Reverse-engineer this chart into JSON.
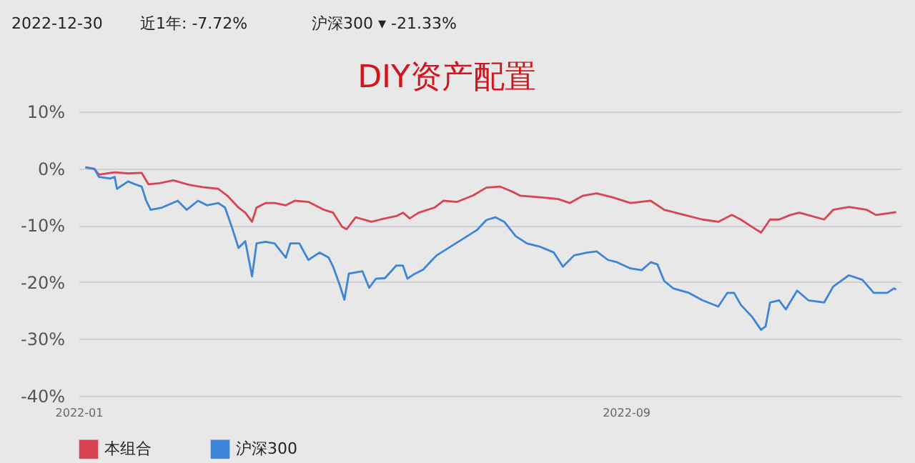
{
  "chart_data": {
    "type": "line",
    "title": "DIY资产配置",
    "annotations": [
      "2022-12-30",
      "近1年: -7.72%",
      "沪深300 ▾ -21.33%"
    ],
    "xlim": [
      "2022-01-01",
      "2023-01-01"
    ],
    "xticks": [
      {
        "value": "2022-01-01",
        "label": "2022-01"
      },
      {
        "value": "2022-09-01",
        "label": "2022-09"
      }
    ],
    "ylim": [
      -40,
      10
    ],
    "yticks": [
      {
        "value": -40,
        "label": "-40%"
      },
      {
        "value": -30,
        "label": "-30%"
      },
      {
        "value": -20,
        "label": "-20%"
      },
      {
        "value": -10,
        "label": "-10%"
      },
      {
        "value": 0,
        "label": "0%"
      },
      {
        "value": 10,
        "label": "10%"
      }
    ],
    "grid": "y",
    "legend": "bottom",
    "marker": "none",
    "line_style": "solid",
    "series": [
      {
        "name": "本组合",
        "color": "#d94452",
        "x": [
          "2022-01-04",
          "2022-01-08",
          "2022-01-10",
          "2022-01-17",
          "2022-01-23",
          "2022-01-29",
          "2022-02-01",
          "2022-02-06",
          "2022-02-12",
          "2022-02-19",
          "2022-02-25",
          "2022-03-04",
          "2022-03-08",
          "2022-03-13",
          "2022-03-16",
          "2022-03-19",
          "2022-03-21",
          "2022-03-25",
          "2022-03-29",
          "2022-04-03",
          "2022-04-07",
          "2022-04-13",
          "2022-04-20",
          "2022-04-24",
          "2022-04-28",
          "2022-04-30",
          "2022-05-04",
          "2022-05-11",
          "2022-05-15",
          "2022-05-22",
          "2022-05-25",
          "2022-05-28",
          "2022-06-01",
          "2022-06-08",
          "2022-06-12",
          "2022-06-18",
          "2022-06-25",
          "2022-07-01",
          "2022-07-07",
          "2022-07-12",
          "2022-07-16",
          "2022-07-25",
          "2022-08-02",
          "2022-08-07",
          "2022-08-13",
          "2022-08-19",
          "2022-08-26",
          "2022-09-03",
          "2022-09-12",
          "2022-09-18",
          "2022-09-27",
          "2022-10-05",
          "2022-10-12",
          "2022-10-18",
          "2022-10-22",
          "2022-10-27",
          "2022-10-31",
          "2022-11-04",
          "2022-11-08",
          "2022-11-13",
          "2022-11-17",
          "2022-11-28",
          "2022-12-02",
          "2022-12-09",
          "2022-12-17",
          "2022-12-21",
          "2022-12-30"
        ],
        "values": [
          0.2,
          -0.1,
          -1.1,
          -0.7,
          -0.9,
          -0.8,
          -2.8,
          -2.6,
          -2.1,
          -2.9,
          -3.3,
          -3.6,
          -4.8,
          -6.9,
          -7.8,
          -9.4,
          -6.9,
          -6.1,
          -6.1,
          -6.5,
          -5.7,
          -5.9,
          -7.3,
          -7.8,
          -10.3,
          -10.7,
          -8.6,
          -9.4,
          -9.0,
          -8.4,
          -7.8,
          -8.8,
          -7.8,
          -6.9,
          -5.7,
          -5.9,
          -4.8,
          -3.4,
          -3.2,
          -4.0,
          -4.8,
          -5.1,
          -5.4,
          -6.1,
          -4.8,
          -4.4,
          -5.1,
          -6.1,
          -5.7,
          -7.3,
          -8.2,
          -9.0,
          -9.4,
          -8.2,
          -9.0,
          -10.3,
          -11.3,
          -9.0,
          -9.0,
          -8.2,
          -7.8,
          -9.0,
          -7.3,
          -6.8,
          -7.3,
          -8.2,
          -7.7
        ]
      },
      {
        "name": "沪深300",
        "color": "#3d85d8",
        "x": [
          "2022-01-04",
          "2022-01-08",
          "2022-01-10",
          "2022-01-15",
          "2022-01-17",
          "2022-01-18",
          "2022-01-23",
          "2022-01-26",
          "2022-01-29",
          "2022-01-31",
          "2022-02-02",
          "2022-02-07",
          "2022-02-14",
          "2022-02-18",
          "2022-02-23",
          "2022-02-27",
          "2022-03-04",
          "2022-03-07",
          "2022-03-10",
          "2022-03-13",
          "2022-03-16",
          "2022-03-19",
          "2022-03-21",
          "2022-03-25",
          "2022-03-29",
          "2022-04-03",
          "2022-04-05",
          "2022-04-09",
          "2022-04-13",
          "2022-04-18",
          "2022-04-22",
          "2022-04-24",
          "2022-04-27",
          "2022-04-29",
          "2022-05-01",
          "2022-05-07",
          "2022-05-10",
          "2022-05-13",
          "2022-05-17",
          "2022-05-22",
          "2022-05-25",
          "2022-05-27",
          "2022-05-30",
          "2022-06-03",
          "2022-06-07",
          "2022-06-09",
          "2022-06-27",
          "2022-07-01",
          "2022-07-05",
          "2022-07-09",
          "2022-07-14",
          "2022-07-19",
          "2022-07-25",
          "2022-07-31",
          "2022-08-04",
          "2022-08-09",
          "2022-08-15",
          "2022-08-19",
          "2022-08-24",
          "2022-08-28",
          "2022-09-03",
          "2022-09-08",
          "2022-09-12",
          "2022-09-15",
          "2022-09-18",
          "2022-09-22",
          "2022-09-29",
          "2022-10-05",
          "2022-10-12",
          "2022-10-16",
          "2022-10-19",
          "2022-10-22",
          "2022-10-27",
          "2022-10-31",
          "2022-11-02",
          "2022-11-04",
          "2022-11-08",
          "2022-11-11",
          "2022-11-16",
          "2022-11-21",
          "2022-11-28",
          "2022-12-02",
          "2022-12-09",
          "2022-12-15",
          "2022-12-20",
          "2022-12-26",
          "2022-12-29",
          "2022-12-30"
        ],
        "values": [
          0.2,
          -0.1,
          -1.5,
          -1.8,
          -1.5,
          -3.6,
          -2.3,
          -2.8,
          -3.2,
          -5.7,
          -7.3,
          -6.9,
          -5.7,
          -7.3,
          -5.7,
          -6.5,
          -6.1,
          -6.9,
          -10.3,
          -14.0,
          -12.8,
          -19.0,
          -13.2,
          -12.9,
          -13.2,
          -15.7,
          -13.2,
          -13.2,
          -16.1,
          -14.8,
          -15.7,
          -17.3,
          -20.6,
          -23.1,
          -18.5,
          -18.1,
          -21.0,
          -19.4,
          -19.3,
          -17.1,
          -17.1,
          -19.4,
          -18.6,
          -17.8,
          -16.1,
          -15.3,
          -10.8,
          -9.1,
          -8.6,
          -9.4,
          -11.9,
          -13.2,
          -13.8,
          -14.8,
          -17.3,
          -15.3,
          -14.8,
          -14.6,
          -16.1,
          -16.5,
          -17.6,
          -17.9,
          -16.5,
          -16.9,
          -19.8,
          -21.1,
          -21.9,
          -23.2,
          -24.3,
          -21.9,
          -21.9,
          -24.0,
          -26.1,
          -28.4,
          -27.8,
          -23.6,
          -23.2,
          -24.8,
          -21.5,
          -23.2,
          -23.6,
          -20.8,
          -18.8,
          -19.6,
          -21.9,
          -21.9,
          -21.1,
          -21.3
        ]
      }
    ]
  }
}
